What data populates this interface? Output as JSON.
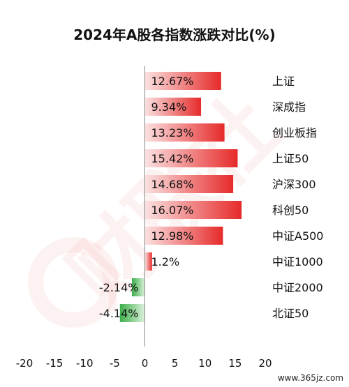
{
  "chart_data": {
    "type": "bar",
    "orientation": "horizontal",
    "title": "2024年A股各指数涨跌对比(%)",
    "categories": [
      "上证",
      "深成指",
      "创业板指",
      "上证50",
      "沪深300",
      "科创50",
      "中证A500",
      "中证1000",
      "中证2000",
      "北证50"
    ],
    "values": [
      12.67,
      9.34,
      13.23,
      15.42,
      14.68,
      16.07,
      12.98,
      1.2,
      -2.14,
      -4.14
    ],
    "value_labels": [
      "12.67%",
      "9.34%",
      "13.23%",
      "15.42%",
      "14.68%",
      "16.07%",
      "12.98%",
      "1.2%",
      "-2.14%",
      "-4.14%"
    ],
    "xlim": [
      -20,
      20
    ],
    "xticks": [
      -20,
      -15,
      -10,
      -5,
      0,
      5,
      10,
      15,
      20
    ],
    "xtick_labels": [
      "-20",
      "-15",
      "-10",
      "-5",
      "0",
      "5",
      "10",
      "15",
      "20"
    ],
    "grid": false,
    "legend": "none",
    "colors": {
      "positive_strong": "#e62a2a",
      "positive_light": "#fbe1e1",
      "negative_strong": "#3cae4a",
      "negative_light": "#dcf2dc",
      "axis": "#888888"
    }
  },
  "watermark": {
    "text": "财联社"
  },
  "source": "www.365jz.com"
}
